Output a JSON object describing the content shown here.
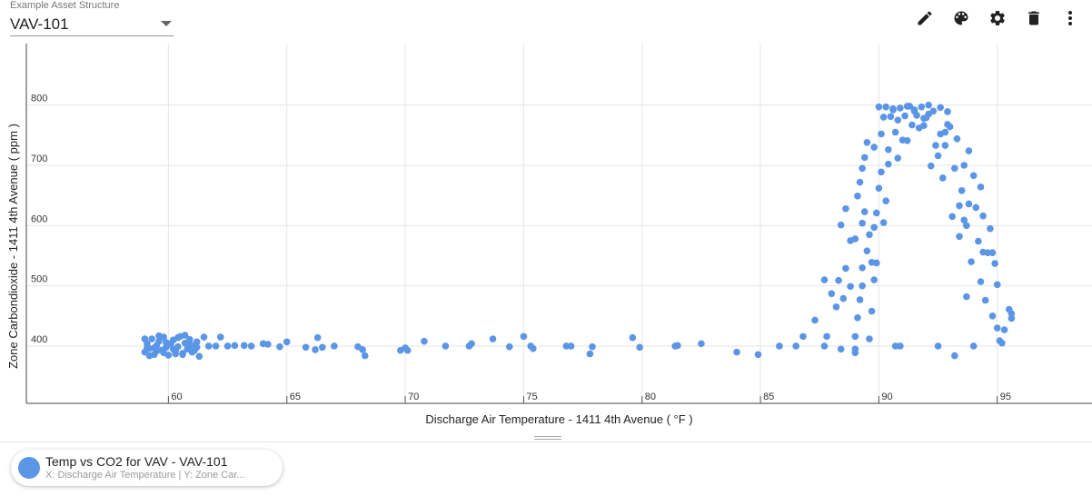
{
  "header": {
    "asset_label": "Example Asset Structure",
    "asset_value": "VAV-101"
  },
  "toolbar": {
    "icons": [
      "pencil-icon",
      "palette-icon",
      "gear-icon",
      "trash-icon",
      "more-vertical-icon"
    ]
  },
  "legend": {
    "title": "Temp vs CO2 for VAV - VAV-101",
    "subtitle": "X: Discharge Air Temperature | Y: Zone Car...",
    "color": "#5b95e6"
  },
  "chart_data": {
    "type": "scatter",
    "xlabel": "Discharge Air Temperature - 1411 4th Avenue ( °F )",
    "ylabel": "Zone Carbondioxide - 1411 4th Avenue ( ppm )",
    "xlim": [
      54,
      99
    ],
    "ylim": [
      305,
      902
    ],
    "xticks": [
      60,
      65,
      70,
      75,
      80,
      85,
      90,
      95
    ],
    "yticks": [
      400,
      500,
      600,
      700,
      800
    ],
    "grid": true,
    "color": "#5b95e6",
    "points": [
      [
        59.0,
        390
      ],
      [
        59.1,
        404
      ],
      [
        59.2,
        396
      ],
      [
        59.3,
        412
      ],
      [
        59.4,
        386
      ],
      [
        59.5,
        401
      ],
      [
        59.6,
        408
      ],
      [
        59.7,
        393
      ],
      [
        59.8,
        415
      ],
      [
        59.9,
        398
      ],
      [
        60.0,
        385
      ],
      [
        60.1,
        404
      ],
      [
        60.2,
        410
      ],
      [
        60.3,
        392
      ],
      [
        60.4,
        399
      ],
      [
        60.5,
        416
      ],
      [
        60.6,
        388
      ],
      [
        60.7,
        405
      ],
      [
        60.8,
        395
      ],
      [
        60.9,
        411
      ],
      [
        61.0,
        401
      ],
      [
        61.1,
        393
      ],
      [
        61.2,
        407
      ],
      [
        61.3,
        383
      ],
      [
        61.5,
        415
      ],
      [
        61.7,
        400
      ],
      [
        59.0,
        412
      ],
      [
        59.2,
        384
      ],
      [
        59.4,
        397
      ],
      [
        59.6,
        417
      ],
      [
        59.8,
        389
      ],
      [
        60.0,
        403
      ],
      [
        60.2,
        395
      ],
      [
        60.4,
        414
      ],
      [
        60.6,
        386
      ],
      [
        60.8,
        402
      ],
      [
        61.0,
        390
      ],
      [
        59.1,
        397
      ],
      [
        59.5,
        392
      ],
      [
        59.9,
        406
      ],
      [
        60.3,
        387
      ],
      [
        60.7,
        418
      ],
      [
        61.2,
        398
      ],
      [
        62.0,
        400
      ],
      [
        62.2,
        415
      ],
      [
        62.5,
        400
      ],
      [
        62.8,
        401
      ],
      [
        63.2,
        401
      ],
      [
        63.5,
        400
      ],
      [
        64.0,
        404
      ],
      [
        64.2,
        403
      ],
      [
        64.7,
        399
      ],
      [
        65.0,
        407
      ],
      [
        65.8,
        398
      ],
      [
        66.2,
        394
      ],
      [
        66.3,
        414
      ],
      [
        66.5,
        398
      ],
      [
        67.0,
        400
      ],
      [
        68.0,
        399
      ],
      [
        68.2,
        394
      ],
      [
        68.3,
        384
      ],
      [
        69.8,
        393
      ],
      [
        70.0,
        397
      ],
      [
        70.1,
        393
      ],
      [
        70.8,
        408
      ],
      [
        71.7,
        400
      ],
      [
        72.7,
        400
      ],
      [
        72.8,
        404
      ],
      [
        73.7,
        412
      ],
      [
        74.4,
        399
      ],
      [
        75.0,
        416
      ],
      [
        75.3,
        400
      ],
      [
        75.4,
        396
      ],
      [
        76.8,
        400
      ],
      [
        77.0,
        400
      ],
      [
        77.8,
        387
      ],
      [
        77.9,
        399
      ],
      [
        79.6,
        414
      ],
      [
        79.9,
        398
      ],
      [
        81.4,
        400
      ],
      [
        81.5,
        401
      ],
      [
        82.5,
        404
      ],
      [
        84.0,
        390
      ],
      [
        84.9,
        386
      ],
      [
        85.8,
        400
      ],
      [
        86.5,
        400
      ],
      [
        86.8,
        416
      ],
      [
        87.3,
        443
      ],
      [
        87.7,
        400
      ],
      [
        87.7,
        510
      ],
      [
        87.8,
        416
      ],
      [
        88.0,
        487
      ],
      [
        88.2,
        465
      ],
      [
        88.4,
        395
      ],
      [
        88.3,
        509
      ],
      [
        88.5,
        479
      ],
      [
        88.6,
        529
      ],
      [
        88.8,
        499
      ],
      [
        88.8,
        575
      ],
      [
        88.4,
        601
      ],
      [
        88.6,
        628
      ],
      [
        89.0,
        389
      ],
      [
        89.0,
        395
      ],
      [
        89.0,
        578
      ],
      [
        89.0,
        416
      ],
      [
        89.1,
        447
      ],
      [
        89.2,
        477
      ],
      [
        89.3,
        500
      ],
      [
        89.3,
        530
      ],
      [
        89.3,
        604
      ],
      [
        89.1,
        649
      ],
      [
        89.2,
        672
      ],
      [
        89.3,
        695
      ],
      [
        89.4,
        713
      ],
      [
        89.5,
        738
      ],
      [
        89.5,
        558
      ],
      [
        89.7,
        539
      ],
      [
        89.4,
        623
      ],
      [
        89.6,
        585
      ],
      [
        89.6,
        412
      ],
      [
        89.7,
        458
      ],
      [
        89.8,
        510
      ],
      [
        89.8,
        597
      ],
      [
        89.8,
        730
      ],
      [
        89.9,
        538
      ],
      [
        89.9,
        621
      ],
      [
        90.0,
        662
      ],
      [
        90.1,
        689
      ],
      [
        90.1,
        752
      ],
      [
        90.2,
        605
      ],
      [
        90.2,
        780
      ],
      [
        90.3,
        797
      ],
      [
        90.3,
        641
      ],
      [
        90.4,
        702
      ],
      [
        90.4,
        726
      ],
      [
        90.5,
        781
      ],
      [
        90.6,
        792
      ],
      [
        90.7,
        400
      ],
      [
        90.7,
        755
      ],
      [
        90.8,
        712
      ],
      [
        90.8,
        775
      ],
      [
        90.9,
        400
      ],
      [
        90.9,
        795
      ],
      [
        91.0,
        742
      ],
      [
        91.1,
        782
      ],
      [
        91.2,
        741
      ],
      [
        91.3,
        798
      ],
      [
        91.4,
        767
      ],
      [
        91.5,
        790
      ],
      [
        91.6,
        783
      ],
      [
        91.7,
        762
      ],
      [
        91.8,
        797
      ],
      [
        91.9,
        766
      ],
      [
        92.0,
        779
      ],
      [
        92.1,
        785
      ],
      [
        92.2,
        699
      ],
      [
        92.3,
        790
      ],
      [
        92.4,
        733
      ],
      [
        92.5,
        400
      ],
      [
        92.5,
        716
      ],
      [
        92.6,
        752
      ],
      [
        92.6,
        796
      ],
      [
        92.7,
        679
      ],
      [
        92.8,
        755
      ],
      [
        92.9,
        789
      ],
      [
        93.0,
        764
      ],
      [
        93.1,
        615
      ],
      [
        93.2,
        384
      ],
      [
        93.2,
        695
      ],
      [
        93.3,
        744
      ],
      [
        93.4,
        633
      ],
      [
        93.4,
        582
      ],
      [
        93.5,
        658
      ],
      [
        93.6,
        700
      ],
      [
        93.7,
        600
      ],
      [
        93.7,
        482
      ],
      [
        93.8,
        636
      ],
      [
        93.8,
        724
      ],
      [
        93.9,
        540
      ],
      [
        94.0,
        400
      ],
      [
        94.0,
        683
      ],
      [
        94.1,
        630
      ],
      [
        94.2,
        574
      ],
      [
        94.3,
        507
      ],
      [
        94.3,
        664
      ],
      [
        94.4,
        616
      ],
      [
        94.5,
        476
      ],
      [
        94.6,
        555
      ],
      [
        94.7,
        595
      ],
      [
        94.8,
        555
      ],
      [
        94.8,
        450
      ],
      [
        94.9,
        537
      ],
      [
        95.0,
        430
      ],
      [
        95.0,
        502
      ],
      [
        95.1,
        409
      ],
      [
        95.2,
        405
      ],
      [
        95.3,
        427
      ],
      [
        95.5,
        461
      ],
      [
        95.6,
        454
      ],
      [
        95.6,
        446
      ],
      [
        91.5,
        792
      ],
      [
        91.9,
        778
      ],
      [
        92.8,
        733
      ],
      [
        93.6,
        609
      ],
      [
        94.4,
        556
      ],
      [
        90.6,
        794
      ],
      [
        91.2,
        798
      ],
      [
        92.1,
        800
      ],
      [
        90.0,
        797
      ],
      [
        92.9,
        768
      ]
    ]
  }
}
